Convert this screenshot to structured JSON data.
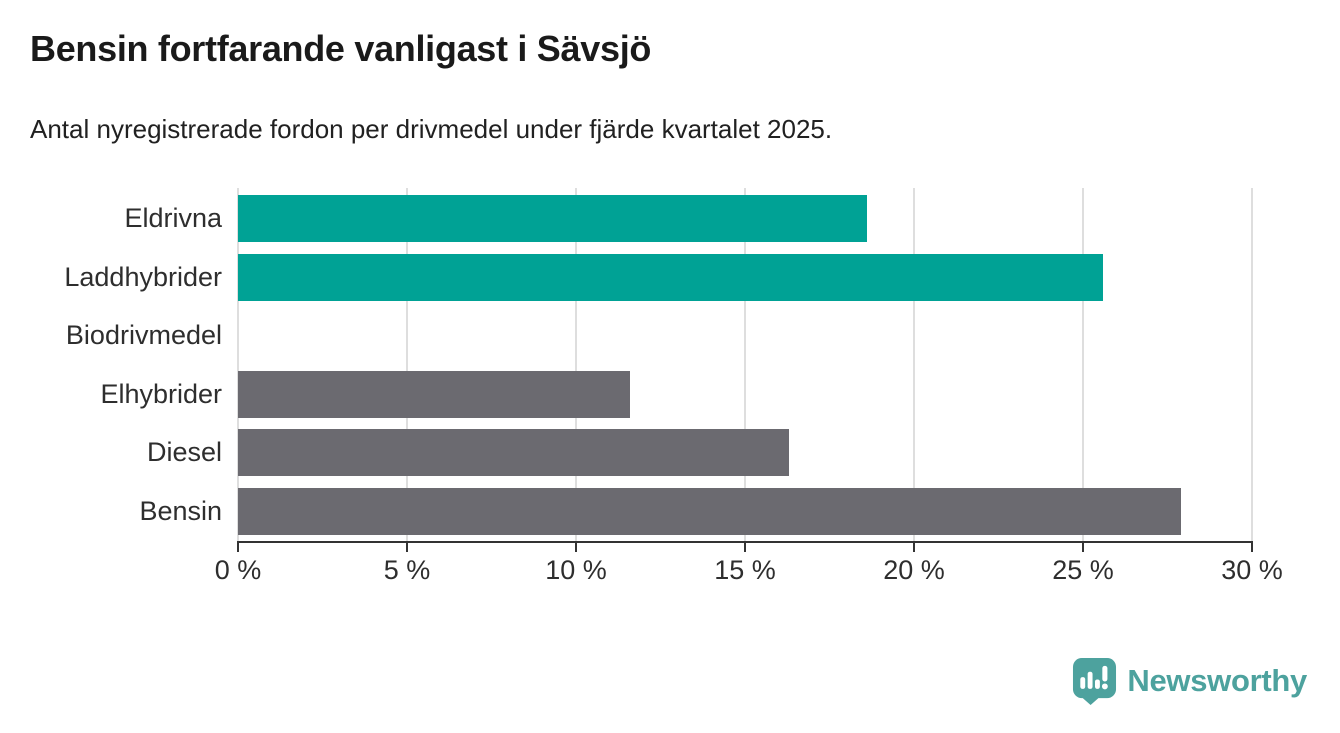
{
  "header": {
    "title": "Bensin fortfarande vanligast i Sävsjö",
    "subtitle": "Antal nyregistrerade fordon per drivmedel under fjärde kvartalet 2025."
  },
  "chart_data": {
    "type": "bar",
    "orientation": "horizontal",
    "title": "Bensin fortfarande vanligast i Sävsjö",
    "subtitle": "Antal nyregistrerade fordon per drivmedel under fjärde kvartalet 2025.",
    "categories": [
      "Eldrivna",
      "Laddhybrider",
      "Biodrivmedel",
      "Elhybrider",
      "Diesel",
      "Bensin"
    ],
    "values": [
      18.6,
      25.6,
      0,
      11.6,
      16.3,
      27.9
    ],
    "unit": "%",
    "xlabel": "",
    "ylabel": "",
    "xlim": [
      0,
      30
    ],
    "x_ticks": [
      0,
      5,
      10,
      15,
      20,
      25,
      30
    ],
    "x_tick_labels": [
      "0 %",
      "5 %",
      "10 %",
      "15 %",
      "20 %",
      "25 %",
      "30 %"
    ],
    "grid": "vertical-only",
    "legend": false,
    "bar_colors": [
      "#00a295",
      "#00a295",
      "#6b6a70",
      "#6b6a70",
      "#6b6a70",
      "#6b6a70"
    ],
    "colors": {
      "highlight": "#00a295",
      "default": "#6b6a70",
      "gridline": "#dedede",
      "axis": "#333333",
      "highlighted_categories": [
        "Eldrivna",
        "Laddhybrider"
      ]
    }
  },
  "footer": {
    "brand": "Newsworthy",
    "brand_color": "#4da29e",
    "logo_icon": "newsworthy-speech-bubble-bar-chart-icon"
  }
}
